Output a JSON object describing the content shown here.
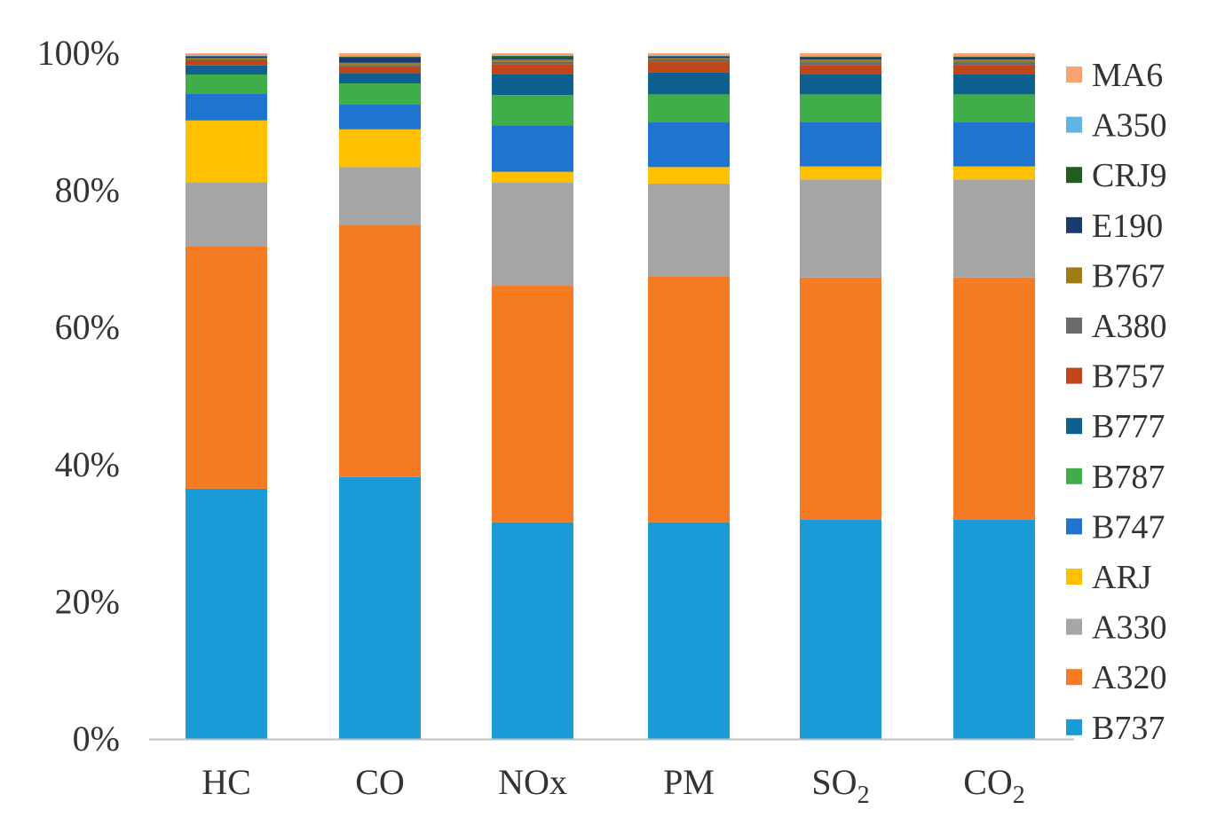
{
  "chart_data": {
    "type": "bar",
    "stacked": true,
    "normalized": true,
    "title": "",
    "xlabel": "",
    "ylabel": "",
    "ylim": [
      0,
      100
    ],
    "yticks": [
      "0%",
      "20%",
      "40%",
      "60%",
      "80%",
      "100%"
    ],
    "categories": [
      {
        "label": "HC",
        "base": "HC",
        "sub": ""
      },
      {
        "label": "CO",
        "base": "CO",
        "sub": ""
      },
      {
        "label": "NOx",
        "base": "NOx",
        "sub": ""
      },
      {
        "label": "PM",
        "base": "PM",
        "sub": ""
      },
      {
        "label": "SO2",
        "base": "SO",
        "sub": "2"
      },
      {
        "label": "CO2",
        "base": "CO",
        "sub": "2"
      }
    ],
    "legend_position": "right",
    "grid": false,
    "series": [
      {
        "name": "B737",
        "color": "#1a9ad6",
        "values": [
          36.5,
          38.2,
          31.6,
          31.6,
          32.0,
          32.0
        ]
      },
      {
        "name": "A320",
        "color": "#f57c22",
        "values": [
          35.4,
          36.8,
          34.5,
          35.8,
          35.3,
          35.3
        ]
      },
      {
        "name": "A330",
        "color": "#a6a6a6",
        "values": [
          9.3,
          8.4,
          15.1,
          13.6,
          14.3,
          14.3
        ]
      },
      {
        "name": "ARJ",
        "color": "#ffc000",
        "values": [
          9.0,
          5.5,
          1.5,
          2.4,
          1.9,
          1.9
        ]
      },
      {
        "name": "B747",
        "color": "#1f74d0",
        "values": [
          3.9,
          3.6,
          6.8,
          6.6,
          6.5,
          6.5
        ]
      },
      {
        "name": "B787",
        "color": "#3fae49",
        "values": [
          2.8,
          3.1,
          4.4,
          4.0,
          4.0,
          4.0
        ]
      },
      {
        "name": "B777",
        "color": "#0f5f8f",
        "values": [
          1.3,
          1.5,
          3.0,
          3.2,
          3.0,
          3.0
        ]
      },
      {
        "name": "B757",
        "color": "#c0461a",
        "values": [
          0.7,
          0.9,
          1.5,
          1.5,
          1.2,
          1.2
        ]
      },
      {
        "name": "A380",
        "color": "#6b6b6b",
        "values": [
          0.2,
          0.3,
          0.4,
          0.4,
          0.5,
          0.5
        ]
      },
      {
        "name": "B767",
        "color": "#a07b16",
        "values": [
          0.2,
          0.3,
          0.3,
          0.2,
          0.4,
          0.4
        ]
      },
      {
        "name": "E190",
        "color": "#1b3a70",
        "values": [
          0.2,
          0.8,
          0.2,
          0.2,
          0.3,
          0.3
        ]
      },
      {
        "name": "CRJ9",
        "color": "#1f5e1f",
        "values": [
          0.1,
          0.1,
          0.3,
          0.1,
          0.1,
          0.1
        ]
      },
      {
        "name": "A350",
        "color": "#63b3e2",
        "values": [
          0.1,
          0.1,
          0.1,
          0.1,
          0.1,
          0.1
        ]
      },
      {
        "name": "MA6",
        "color": "#f9a470",
        "values": [
          0.3,
          0.4,
          0.3,
          0.3,
          0.4,
          0.4
        ]
      }
    ]
  }
}
